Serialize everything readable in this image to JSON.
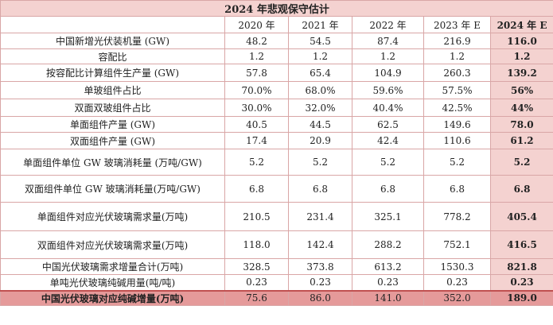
{
  "title": "2024 年悲观保守估计",
  "columns": [
    "2020 年",
    "2021 年",
    "2022 年",
    "2023 年 E",
    "2024 年 E"
  ],
  "rows": [
    {
      "label": "中国新增光伏装机量 (GW)",
      "values": [
        "48.2",
        "54.5",
        "87.4",
        "216.9",
        "116.0"
      ]
    },
    {
      "label": "容配比",
      "values": [
        "1.2",
        "1.2",
        "1.2",
        "1.2",
        "1.2"
      ]
    },
    {
      "label": "按容配比计算组件生产量 (GW)",
      "values": [
        "57.8",
        "65.4",
        "104.9",
        "260.3",
        "139.2"
      ]
    },
    {
      "label": "单玻组件占比",
      "values": [
        "70.0%",
        "68.0%",
        "59.6%",
        "57.5%",
        "56%"
      ]
    },
    {
      "label": "双面双玻组件占比",
      "values": [
        "30.0%",
        "32.0%",
        "40.4%",
        "42.5%",
        "44%"
      ]
    },
    {
      "label": "单面组件产量 (GW)",
      "values": [
        "40.5",
        "44.5",
        "62.5",
        "149.6",
        "78.0"
      ]
    },
    {
      "label": "双面组件产量 (GW)",
      "values": [
        "17.4",
        "20.9",
        "42.4",
        "110.6",
        "61.2"
      ]
    },
    {
      "label": "单面组件单位 GW 玻璃消耗量 (万吨/GW)",
      "values": [
        "5.2",
        "5.2",
        "5.2",
        "5.2",
        "5.2"
      ]
    },
    {
      "label": "双面组件单位 GW 玻璃消耗量(万吨/GW)",
      "values": [
        "6.8",
        "6.8",
        "6.8",
        "6.8",
        "6.8"
      ]
    },
    {
      "label": "单面组件对应光伏玻璃需求量(万吨)",
      "values": [
        "210.5",
        "231.4",
        "325.1",
        "778.2",
        "405.4"
      ]
    },
    {
      "label": "双面组件对应光伏玻璃需求量(万吨)",
      "values": [
        "118.0",
        "142.4",
        "288.2",
        "752.1",
        "416.5"
      ]
    },
    {
      "label": "中国光伏玻璃需求增量合计(万吨)",
      "values": [
        "328.5",
        "373.8",
        "613.2",
        "1530.3",
        "821.8"
      ]
    },
    {
      "label": "单吨光伏玻璃纯碱用量(吨/吨)",
      "values": [
        "0.23",
        "0.23",
        "0.23",
        "0.23",
        "0.23"
      ]
    }
  ],
  "total": {
    "label": "中国光伏玻璃对应纯碱增量(万吨)",
    "values": [
      "75.6",
      "86.0",
      "141.0",
      "352.0",
      "189.0"
    ]
  }
}
